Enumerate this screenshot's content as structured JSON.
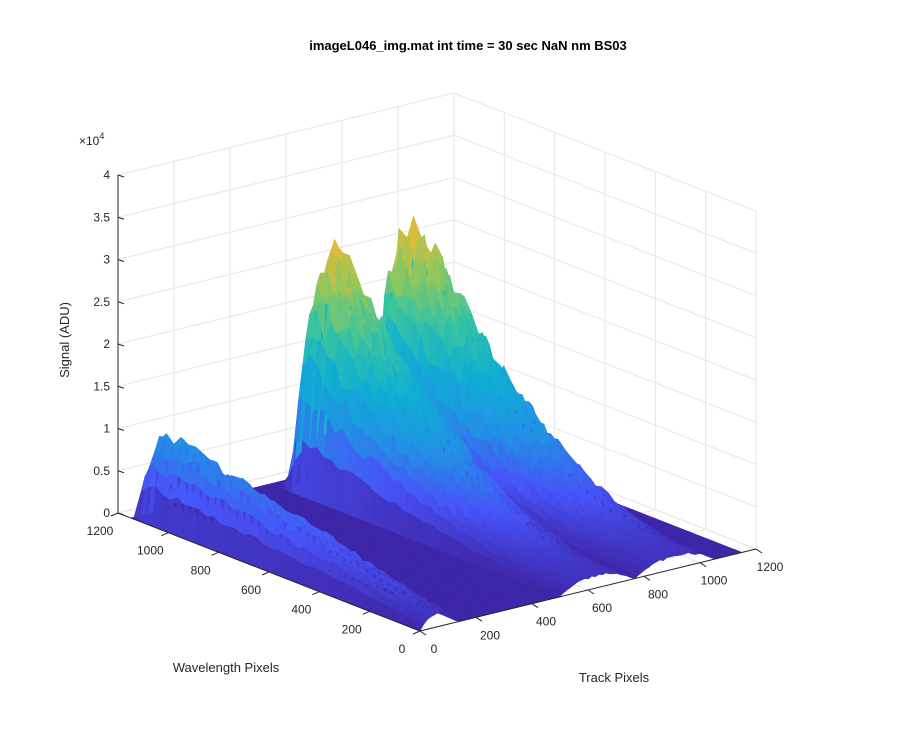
{
  "chart_data": {
    "type": "surface",
    "title": "imageL046_img.mat int time = 30 sec  NaN nm BS03",
    "xlabel": "Track Pixels",
    "ylabel": "Wavelength Pixels",
    "zlabel": "Signal (ADU)",
    "z_exponent_label": "×10",
    "z_exponent_power": "4",
    "xlim": [
      0,
      1200
    ],
    "ylim": [
      0,
      1200
    ],
    "zlim": [
      0,
      40000
    ],
    "x_ticks": [
      "0",
      "200",
      "400",
      "600",
      "800",
      "1000",
      "1200"
    ],
    "y_ticks": [
      "0",
      "200",
      "400",
      "600",
      "800",
      "1000",
      "1200"
    ],
    "z_ticks": [
      "0",
      "0.5",
      "1",
      "1.5",
      "2",
      "2.5",
      "3",
      "3.5",
      "4"
    ],
    "grid": true,
    "colormap": "parula",
    "surface_peaks": [
      {
        "name": "",
        "track_range": [
          0,
          130
        ],
        "wavelength_range": [
          0,
          1150
        ],
        "peak_signal": 10500
      },
      {
        "name": "",
        "track_range": [
          500,
          760
        ],
        "wavelength_range": [
          0,
          1100
        ],
        "peak_signal": 30000
      },
      {
        "name": "",
        "track_range": [
          770,
          1050
        ],
        "wavelength_range": [
          0,
          1100
        ],
        "peak_signal": 31000
      }
    ]
  }
}
